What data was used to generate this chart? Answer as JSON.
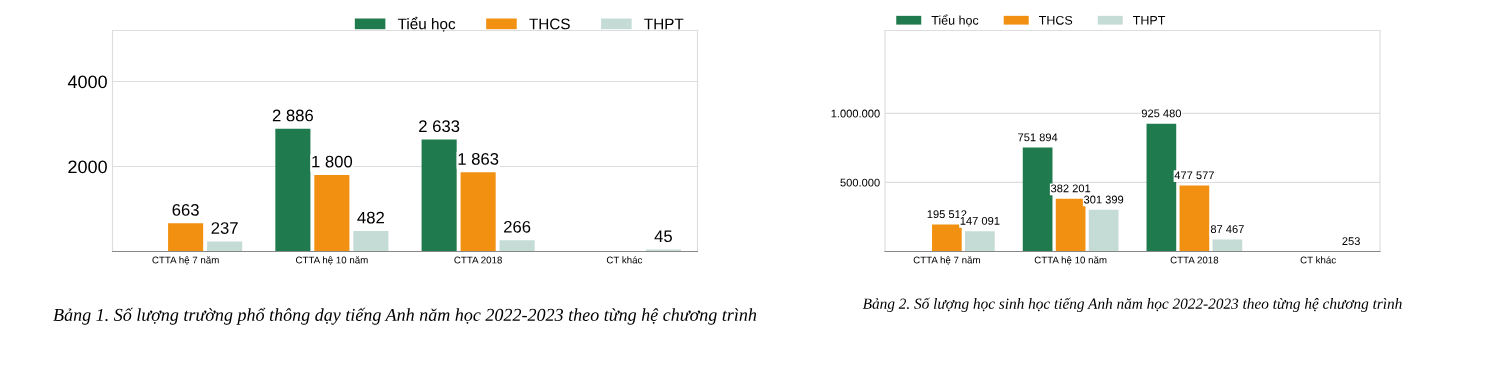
{
  "chart_data": [
    {
      "type": "bar",
      "categories": [
        "CTTA hệ 7 năm",
        "CTTA hệ 10 năm",
        "CTTA 2018",
        "CT khác"
      ],
      "series": [
        {
          "name": "Tiểu học",
          "color": "#1f7a4d",
          "values": [
            null,
            2886,
            2633,
            null
          ],
          "value_labels": [
            null,
            "2 886",
            "2 633",
            null
          ]
        },
        {
          "name": "THCS",
          "color": "#f29111",
          "values": [
            663,
            1800,
            1863,
            null
          ],
          "value_labels": [
            "663",
            "1 800",
            "1 863",
            null
          ]
        },
        {
          "name": "THPT",
          "color": "#c5dcd6",
          "values": [
            237,
            482,
            266,
            45
          ],
          "value_labels": [
            "237",
            "482",
            "266",
            "45"
          ]
        }
      ],
      "ylim": [
        0,
        5200
      ],
      "yticks": [
        2000,
        4000
      ],
      "grid": "y",
      "legend": "top right",
      "annotations": [
        "Bảng 1. Số lượng trường phổ thông dạy tiếng Anh năm học 2022-2023 theo từng hệ chương trình"
      ]
    },
    {
      "type": "bar",
      "categories": [
        "CTTA hệ 7 năm",
        "CTTA hệ 10 năm",
        "CTTA 2018",
        "CT khác"
      ],
      "series": [
        {
          "name": "Tiểu học",
          "color": "#1f7a4d",
          "values": [
            null,
            751894,
            925480,
            null
          ],
          "value_labels": [
            null,
            "751 894",
            "925 480",
            null
          ]
        },
        {
          "name": "THCS",
          "color": "#f29111",
          "values": [
            195512,
            382201,
            477577,
            null
          ],
          "value_labels": [
            "195 512",
            "382 201",
            "477 577",
            null
          ]
        },
        {
          "name": "THPT",
          "color": "#c5dcd6",
          "values": [
            147091,
            301399,
            87467,
            253
          ],
          "value_labels": [
            "147 091",
            "301 399",
            "87 467",
            "253"
          ]
        }
      ],
      "ylim": [
        0,
        1600000
      ],
      "yticks": [
        {
          "value": 500000,
          "label": "500.000"
        },
        {
          "value": 1000000,
          "label": "1.000.000"
        }
      ],
      "grid": "y",
      "legend": "top left",
      "annotations": [
        "Bảng 2. Số lượng học sinh học tiếng Anh năm học 2022-2023 theo từng hệ chương trình"
      ]
    }
  ]
}
